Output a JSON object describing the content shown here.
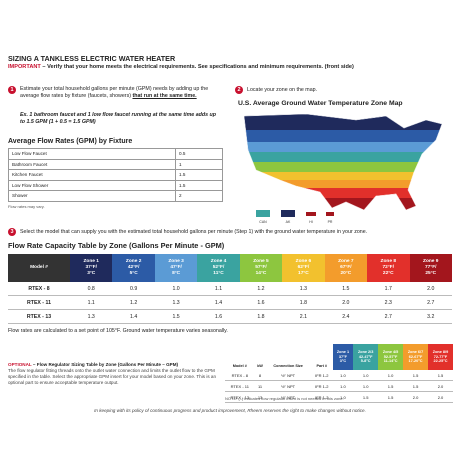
{
  "header": {
    "title": "SIZING A TANKLESS ELECTRIC WATER HEATER"
  },
  "important": {
    "label": "IMPORTANT",
    "text": " – Verify that your home meets the electrical requirements. See specifications and minimum requirements. (front side)"
  },
  "step1": {
    "number": "1",
    "text": "Estimate your total household gallons per minute (GPM) needs by adding up the average flow rates by fixture  (faucets, showers)",
    "emphasis": "that run at the same time.",
    "example": "Ex. 1 bathroom faucet and 1 low flow faucet running at the same time adds up to 1.5 GPM (1 + 0.5 = 1.5 GPM)"
  },
  "flow_table": {
    "title": "Average Flow Rates (GPM) by Fixture",
    "rows": [
      [
        "Low Flow Faucet",
        "0.5"
      ],
      [
        "Bathroom Faucet",
        "1"
      ],
      [
        "Kitchen Faucet",
        "1.5"
      ],
      [
        "Low Flow Shower",
        "1.5"
      ],
      [
        "Shower",
        "2"
      ]
    ],
    "note": "Flow rates may vary."
  },
  "step2": {
    "number": "2",
    "text": "Locate your zone on the map."
  },
  "map": {
    "title": "U.S. Average Ground Water Temperature Zone Map",
    "labels": [
      "CAN",
      "AK",
      "HI",
      "PR"
    ]
  },
  "step3": {
    "number": "3",
    "text": "Select the model that can supply you with the estimated total household gallons per minute (Step 1) with the ground water temperature in your zone."
  },
  "capacity": {
    "title": "Flow Rate Capacity Table by Zone (Gallons Per Minute - GPM)",
    "model_header": "Model #",
    "zones": [
      {
        "name": "Zone 1",
        "f": "37°F/",
        "c": "3°C",
        "color": "#1f2a5c"
      },
      {
        "name": "Zone 2",
        "f": "42°F/",
        "c": "5°C",
        "color": "#2c5ba6"
      },
      {
        "name": "Zone 3",
        "f": "47°F/",
        "c": "8°C",
        "color": "#5b9bd5"
      },
      {
        "name": "Zone 4",
        "f": "52°F/",
        "c": "11°C",
        "color": "#3aa3a0"
      },
      {
        "name": "Zone 5",
        "f": "57°F/",
        "c": "14°C",
        "color": "#8dc63f"
      },
      {
        "name": "Zone 6",
        "f": "62°F/",
        "c": "17°C",
        "color": "#f2c12e"
      },
      {
        "name": "Zone 7",
        "f": "67°F/",
        "c": "20°C",
        "color": "#f39c2c"
      },
      {
        "name": "Zone 8",
        "f": "72°F/",
        "c": "22°C",
        "color": "#e2302b"
      },
      {
        "name": "Zone 9",
        "f": "77°F/",
        "c": "25°C",
        "color": "#a3161d"
      }
    ],
    "rows": [
      [
        "RTEX - 8",
        "0.8",
        "0.9",
        "1.0",
        "1.1",
        "1.2",
        "1.3",
        "1.5",
        "1.7",
        "2.0"
      ],
      [
        "RTEX - 11",
        "1.1",
        "1.2",
        "1.3",
        "1.4",
        "1.6",
        "1.8",
        "2.0",
        "2.3",
        "2.7"
      ],
      [
        "RTEX - 13",
        "1.3",
        "1.4",
        "1.5",
        "1.6",
        "1.8",
        "2.1",
        "2.4",
        "2.7",
        "3.2"
      ]
    ],
    "footnote": "Flow rates are calculated to a set point of 105°F. Ground water temperature varies seasonally."
  },
  "optional": {
    "label": "OPTIONAL",
    "title": " – Flow Regulator Sizing Table by Zone (Gallons Per Minute – GPM)",
    "text": "The flow regulator fitting threads onto the outlet water connection and limits the outlet flow to the GPM specified in the table. Select the appropriate GPM insert for your model based on your zone. This is an optional part to ensure acceptable temperature output."
  },
  "regulator": {
    "header": [
      "Model #",
      "kW",
      "Connection Size",
      "Part #"
    ],
    "zones": [
      {
        "name": "Zone 1",
        "f": "37°F",
        "c": "3°C",
        "color": "#2c5ba6"
      },
      {
        "name": "Zone 2/3",
        "f": "42-47°F",
        "c": "5-8°C",
        "color": "#3aa3a0"
      },
      {
        "name": "Zone 4/5",
        "f": "52-57°F",
        "c": "11-14°C",
        "color": "#8dc63f"
      },
      {
        "name": "Zone 6/7",
        "f": "62-67°F",
        "c": "17-20°C",
        "color": "#f39c2c"
      },
      {
        "name": "Zone 8/9",
        "f": "72-77°F",
        "c": "22-25°C",
        "color": "#e2302b"
      }
    ],
    "rows": [
      [
        "RTEX - 8",
        "8",
        "½\" NPT",
        "IFR 1-2",
        "1.0",
        "1.0",
        "1.0",
        "1.5",
        "1.5"
      ],
      [
        "RTEX - 11",
        "11",
        "½\" NPT",
        "IFR 1-2",
        "1.0",
        "1.0",
        "1.5",
        "1.5",
        "2.0"
      ],
      [
        "RTEX - 13",
        "13",
        "½\" NPT",
        "IFR 1-2",
        "1.0",
        "1.5",
        "1.5",
        "2.0",
        "2.0"
      ]
    ],
    "note": "NOTE: (–) indicates flow regulator insert is not needed in this zone."
  },
  "footer": "In keeping with its policy of continuous progress and product improvement, Rheem reserves the right to make changes without notice."
}
